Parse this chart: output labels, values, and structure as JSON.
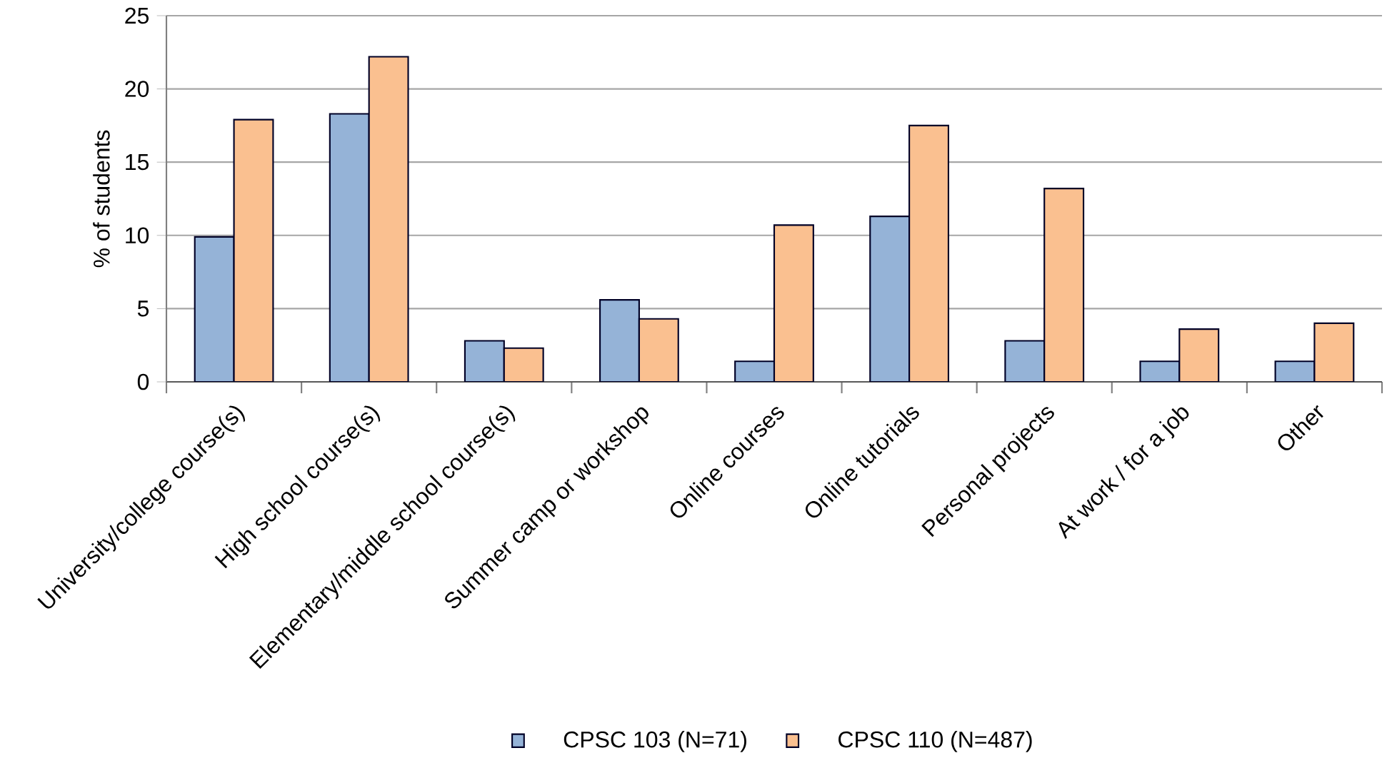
{
  "chart_data": {
    "type": "bar",
    "ylabel": "% of students",
    "categories": [
      "University/college course(s)",
      "High school course(s)",
      "Elementary/middle school course(s)",
      "Summer camp or workshop",
      "Online courses",
      "Online tutorials",
      "Personal projects",
      "At work / for a job",
      "Other"
    ],
    "series": [
      {
        "name": "CPSC 103 (N=71)",
        "color": "#95b3d7",
        "values": [
          9.9,
          18.3,
          2.8,
          5.6,
          1.4,
          11.3,
          2.8,
          1.4,
          1.4
        ]
      },
      {
        "name": "CPSC 110 (N=487)",
        "color": "#fac090",
        "values": [
          17.9,
          22.2,
          2.3,
          4.3,
          10.7,
          17.5,
          13.2,
          3.6,
          4.0
        ]
      }
    ],
    "ylim": [
      0,
      25
    ],
    "yticks": [
      0,
      5,
      10,
      15,
      20,
      25
    ],
    "grid": "y",
    "legend": "bottom"
  }
}
